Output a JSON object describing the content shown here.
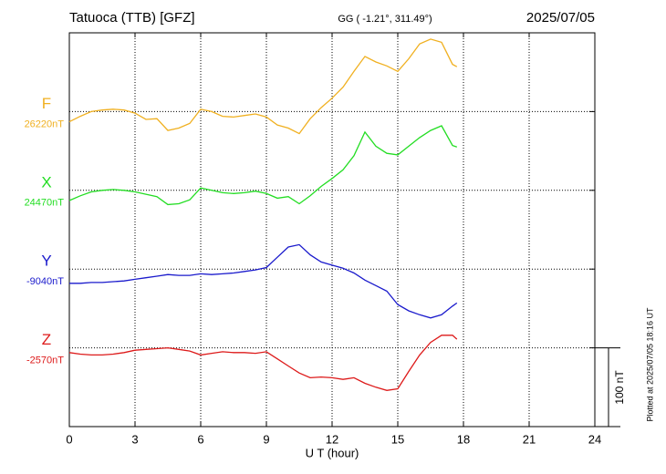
{
  "chart_data": {
    "type": "line",
    "title": "Tatuoca (TTB)  [GFZ]",
    "subtitle": "GG ( -1.21°, 311.49°)",
    "date": "2025/07/05",
    "x_label": "U T (hour)",
    "footnote": "Plotted at 2025/07/05 18:16 UT",
    "scale": {
      "value": 100,
      "label": "100 nT"
    },
    "xlim": [
      0,
      24
    ],
    "xticks": [
      0,
      3,
      6,
      9,
      12,
      15,
      18,
      21,
      24
    ],
    "grid": true,
    "x": [
      0,
      0.5,
      1,
      1.5,
      2,
      2.5,
      3,
      3.5,
      4,
      4.5,
      5,
      5.5,
      6,
      6.5,
      7,
      7.5,
      8,
      8.5,
      9,
      9.5,
      10,
      10.5,
      11,
      11.5,
      12,
      12.5,
      13,
      13.5,
      14,
      14.5,
      15,
      15.5,
      16,
      16.5,
      17,
      17.5,
      17.7
    ],
    "series": [
      {
        "name": "F",
        "color": "#f0b020",
        "baseline": {
          "value": 26220,
          "label": "26220nT"
        },
        "values": [
          26207,
          26214,
          26220,
          26222,
          26223,
          26222,
          26218,
          26210,
          26211,
          26196,
          26199,
          26205,
          26223,
          26220,
          26214,
          26213,
          26215,
          26217,
          26213,
          26203,
          26199,
          26192,
          26211,
          26225,
          26237,
          26251,
          26271,
          26290,
          26283,
          26278,
          26271,
          26287,
          26306,
          26312,
          26308,
          26280,
          26277
        ]
      },
      {
        "name": "X",
        "color": "#22dd22",
        "baseline": {
          "value": 24470,
          "label": "24470nT"
        },
        "values": [
          24457,
          24463,
          24468,
          24470,
          24471,
          24470,
          24468,
          24465,
          24462,
          24452,
          24453,
          24458,
          24473,
          24470,
          24467,
          24466,
          24467,
          24469,
          24466,
          24460,
          24462,
          24453,
          24463,
          24475,
          24485,
          24496,
          24514,
          24544,
          24526,
          24517,
          24515,
          24526,
          24537,
          24546,
          24552,
          24527,
          24525
        ]
      },
      {
        "name": "Y",
        "color": "#1a1acc",
        "baseline": {
          "value": -9040,
          "label": "-9040nT"
        },
        "values": [
          -9058,
          -9058,
          -9057,
          -9057,
          -9056,
          -9055,
          -9053,
          -9051,
          -9049,
          -9047,
          -9048,
          -9048,
          -9046,
          -9047,
          -9046,
          -9045,
          -9043,
          -9041,
          -9038,
          -9025,
          -9012,
          -9009,
          -9022,
          -9031,
          -9035,
          -9039,
          -9045,
          -9054,
          -9061,
          -9068,
          -9085,
          -9093,
          -9098,
          -9102,
          -9098,
          -9087,
          -9083
        ]
      },
      {
        "name": "Z",
        "color": "#dd1a1a",
        "baseline": {
          "value": -2570,
          "label": "-2570nT"
        },
        "values": [
          -2576,
          -2578,
          -2579,
          -2579,
          -2578,
          -2576,
          -2573,
          -2572,
          -2571,
          -2570,
          -2572,
          -2574,
          -2579,
          -2577,
          -2575,
          -2576,
          -2576,
          -2577,
          -2575,
          -2584,
          -2593,
          -2602,
          -2608,
          -2607,
          -2608,
          -2610,
          -2608,
          -2615,
          -2620,
          -2624,
          -2622,
          -2600,
          -2579,
          -2563,
          -2554,
          -2554,
          -2559
        ]
      }
    ]
  }
}
